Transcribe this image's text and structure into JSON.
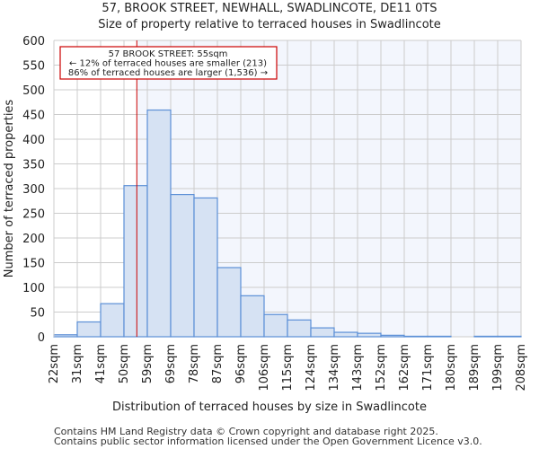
{
  "chart_data": {
    "type": "bar",
    "title": "57, BROOK STREET, NEWHALL, SWADLINCOTE, DE11 0TS",
    "subtitle": "Size of property relative to terraced houses in Swadlincote",
    "xlabel": "Distribution of terraced houses by size in Swadlincote",
    "ylabel": "Number of terraced properties",
    "x_tick_labels": [
      "22sqm",
      "31sqm",
      "41sqm",
      "50sqm",
      "59sqm",
      "69sqm",
      "78sqm",
      "87sqm",
      "96sqm",
      "106sqm",
      "115sqm",
      "124sqm",
      "134sqm",
      "143sqm",
      "152sqm",
      "162sqm",
      "171sqm",
      "180sqm",
      "189sqm",
      "199sqm",
      "208sqm"
    ],
    "values": [
      4,
      30,
      67,
      306,
      459,
      288,
      281,
      140,
      83,
      45,
      34,
      18,
      9,
      7,
      3,
      1,
      1,
      0,
      1,
      1
    ],
    "ylim": [
      0,
      600
    ],
    "y_ticks": [
      0,
      50,
      100,
      150,
      200,
      250,
      300,
      350,
      400,
      450,
      500,
      550,
      600
    ],
    "grid": true,
    "marker": {
      "value_bin_position": 3.55,
      "label": "55sqm",
      "color": "#cc0000"
    },
    "annotation": [
      "57 BROOK STREET: 55sqm",
      "← 12% of terraced houses are smaller (213)",
      "86% of terraced houses are larger (1,536) →"
    ],
    "bar_fill": "#d6e2f3",
    "bar_edge": "#5b8fd6",
    "highlight_bg": "#f3f6fd"
  },
  "footer": [
    "Contains HM Land Registry data © Crown copyright and database right 2025.",
    "Contains public sector information licensed under the Open Government Licence v3.0."
  ]
}
